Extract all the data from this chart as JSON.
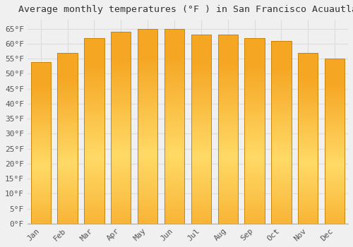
{
  "title": "Average monthly temperatures (°F ) in San Francisco Acuautla",
  "months": [
    "Jan",
    "Feb",
    "Mar",
    "Apr",
    "May",
    "Jun",
    "Jul",
    "Aug",
    "Sep",
    "Oct",
    "Nov",
    "Dec"
  ],
  "values": [
    54,
    57,
    62,
    64,
    65,
    65,
    63,
    63,
    62,
    61,
    57,
    55
  ],
  "bar_color_bottom": "#F5A623",
  "bar_color_top": "#FFD966",
  "bar_edge_color": "#C8860A",
  "background_color": "#F0F0F0",
  "grid_color": "#DDDDDD",
  "text_color": "#555555",
  "ylim": [
    0,
    68
  ],
  "yticks": [
    0,
    5,
    10,
    15,
    20,
    25,
    30,
    35,
    40,
    45,
    50,
    55,
    60,
    65
  ],
  "title_fontsize": 9.5,
  "tick_fontsize": 8,
  "bar_width": 0.75
}
